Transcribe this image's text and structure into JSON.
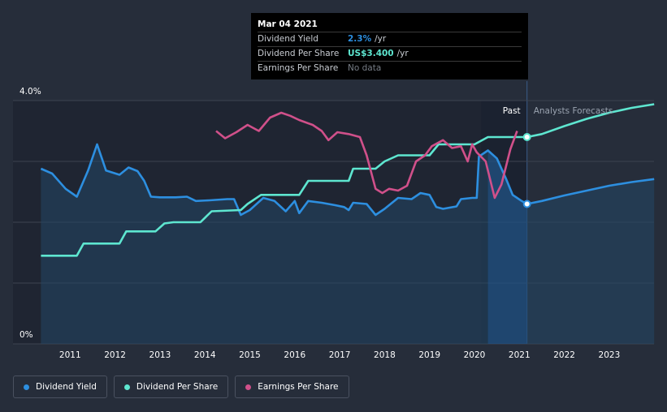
{
  "chart_data": {
    "type": "line",
    "y_axis": {
      "labels": [
        "4.0%",
        "0%"
      ],
      "ylim": [
        0,
        4.0
      ],
      "unit": "%"
    },
    "x_axis": {
      "labels": [
        "2011",
        "2012",
        "2013",
        "2014",
        "2015",
        "2016",
        "2017",
        "2018",
        "2019",
        "2020",
        "2021",
        "2022",
        "2023"
      ],
      "xlim": [
        "2010-05",
        "2024-01"
      ]
    },
    "regions": {
      "past_label": "Past",
      "forecast_label": "Analysts Forecasts",
      "divider_date": "2021-03"
    },
    "series": [
      {
        "name": "Dividend Yield",
        "color": "#2d8fe0",
        "points": [
          [
            2010.35,
            2.88
          ],
          [
            2010.6,
            2.8
          ],
          [
            2010.9,
            2.55
          ],
          [
            2011.15,
            2.42
          ],
          [
            2011.4,
            2.85
          ],
          [
            2011.6,
            3.28
          ],
          [
            2011.8,
            2.85
          ],
          [
            2012.1,
            2.78
          ],
          [
            2012.3,
            2.9
          ],
          [
            2012.5,
            2.84
          ],
          [
            2012.65,
            2.68
          ],
          [
            2012.8,
            2.42
          ],
          [
            2013.0,
            2.41
          ],
          [
            2013.35,
            2.41
          ],
          [
            2013.6,
            2.42
          ],
          [
            2013.8,
            2.35
          ],
          [
            2014.1,
            2.36
          ],
          [
            2014.5,
            2.38
          ],
          [
            2014.65,
            2.38
          ],
          [
            2014.8,
            2.12
          ],
          [
            2015.0,
            2.2
          ],
          [
            2015.3,
            2.4
          ],
          [
            2015.55,
            2.35
          ],
          [
            2015.8,
            2.18
          ],
          [
            2016.0,
            2.35
          ],
          [
            2016.1,
            2.15
          ],
          [
            2016.3,
            2.35
          ],
          [
            2016.6,
            2.32
          ],
          [
            2016.9,
            2.28
          ],
          [
            2017.1,
            2.25
          ],
          [
            2017.2,
            2.2
          ],
          [
            2017.3,
            2.32
          ],
          [
            2017.6,
            2.3
          ],
          [
            2017.8,
            2.12
          ],
          [
            2018.0,
            2.22
          ],
          [
            2018.3,
            2.4
          ],
          [
            2018.6,
            2.38
          ],
          [
            2018.8,
            2.48
          ],
          [
            2019.0,
            2.45
          ],
          [
            2019.15,
            2.25
          ],
          [
            2019.3,
            2.22
          ],
          [
            2019.6,
            2.26
          ],
          [
            2019.7,
            2.38
          ],
          [
            2019.95,
            2.4
          ],
          [
            2020.05,
            2.4
          ],
          [
            2020.1,
            3.08
          ],
          [
            2020.3,
            3.18
          ],
          [
            2020.5,
            3.05
          ],
          [
            2020.7,
            2.72
          ],
          [
            2020.85,
            2.45
          ],
          [
            2021.05,
            2.35
          ],
          [
            2021.17,
            2.3
          ]
        ],
        "forecast": [
          [
            2021.17,
            2.3
          ],
          [
            2021.5,
            2.35
          ],
          [
            2022.0,
            2.44
          ],
          [
            2022.5,
            2.52
          ],
          [
            2023.0,
            2.6
          ],
          [
            2023.5,
            2.66
          ],
          [
            2024.0,
            2.71
          ]
        ]
      },
      {
        "name": "Dividend Per Share",
        "color": "#5ee6d0",
        "points": [
          [
            2010.35,
            1.45
          ],
          [
            2011.15,
            1.45
          ],
          [
            2011.3,
            1.65
          ],
          [
            2012.1,
            1.65
          ],
          [
            2012.25,
            1.85
          ],
          [
            2012.9,
            1.85
          ],
          [
            2013.1,
            1.98
          ],
          [
            2013.3,
            2.0
          ],
          [
            2013.9,
            2.0
          ],
          [
            2014.15,
            2.18
          ],
          [
            2014.8,
            2.2
          ],
          [
            2014.95,
            2.3
          ],
          [
            2015.25,
            2.45
          ],
          [
            2016.1,
            2.45
          ],
          [
            2016.3,
            2.68
          ],
          [
            2017.2,
            2.68
          ],
          [
            2017.3,
            2.88
          ],
          [
            2017.8,
            2.88
          ],
          [
            2018.0,
            3.0
          ],
          [
            2018.3,
            3.1
          ],
          [
            2019.0,
            3.1
          ],
          [
            2019.2,
            3.28
          ],
          [
            2020.0,
            3.28
          ],
          [
            2020.3,
            3.4
          ],
          [
            2021.17,
            3.4
          ]
        ],
        "forecast": [
          [
            2021.17,
            3.4
          ],
          [
            2021.5,
            3.45
          ],
          [
            2022.0,
            3.58
          ],
          [
            2022.5,
            3.7
          ],
          [
            2023.0,
            3.8
          ],
          [
            2023.5,
            3.88
          ],
          [
            2024.0,
            3.94
          ]
        ]
      },
      {
        "name": "Earnings Per Share",
        "color": "#d0508a",
        "points": [
          [
            2014.25,
            3.5
          ],
          [
            2014.45,
            3.38
          ],
          [
            2014.7,
            3.48
          ],
          [
            2014.95,
            3.6
          ],
          [
            2015.2,
            3.5
          ],
          [
            2015.45,
            3.72
          ],
          [
            2015.7,
            3.8
          ],
          [
            2015.9,
            3.75
          ],
          [
            2016.1,
            3.68
          ],
          [
            2016.4,
            3.6
          ],
          [
            2016.6,
            3.5
          ],
          [
            2016.75,
            3.35
          ],
          [
            2016.95,
            3.48
          ],
          [
            2017.2,
            3.45
          ],
          [
            2017.45,
            3.4
          ],
          [
            2017.6,
            3.1
          ],
          [
            2017.8,
            2.55
          ],
          [
            2017.95,
            2.48
          ],
          [
            2018.1,
            2.55
          ],
          [
            2018.3,
            2.52
          ],
          [
            2018.5,
            2.6
          ],
          [
            2018.7,
            3.0
          ],
          [
            2018.9,
            3.1
          ],
          [
            2019.05,
            3.25
          ],
          [
            2019.3,
            3.35
          ],
          [
            2019.5,
            3.22
          ],
          [
            2019.7,
            3.25
          ],
          [
            2019.85,
            3.0
          ],
          [
            2019.95,
            3.28
          ],
          [
            2020.05,
            3.15
          ],
          [
            2020.25,
            3.0
          ],
          [
            2020.45,
            2.4
          ],
          [
            2020.6,
            2.62
          ],
          [
            2020.8,
            3.2
          ],
          [
            2020.95,
            3.5
          ]
        ]
      }
    ],
    "tooltip": {
      "date": "Mar 04 2021",
      "rows": [
        {
          "label": "Dividend Yield",
          "value": "2.3%",
          "unit": "/yr",
          "color": "#2d8fe0"
        },
        {
          "label": "Dividend Per Share",
          "value": "US$3.400",
          "unit": "/yr",
          "color": "#5ee6d0"
        },
        {
          "label": "Earnings Per Share",
          "value": "No data",
          "unit": ""
        }
      ]
    },
    "legend": [
      {
        "label": "Dividend Yield",
        "color": "#2d8fe0"
      },
      {
        "label": "Dividend Per Share",
        "color": "#5ee6d0"
      },
      {
        "label": "Earnings Per Share",
        "color": "#d0508a"
      }
    ]
  }
}
